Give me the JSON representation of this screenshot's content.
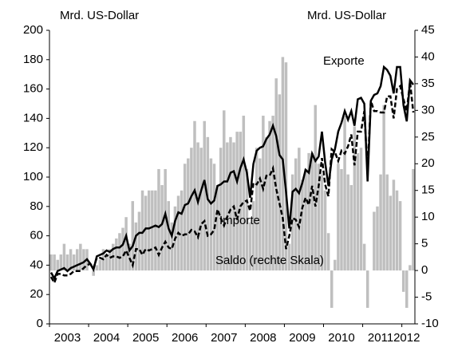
{
  "chart_data": {
    "type": "combo",
    "y_label": "Mrd. US-Dollar",
    "y2_label": "Mrd. US-Dollar",
    "categories": [
      null,
      null,
      null,
      null,
      null,
      "2003",
      null,
      null,
      null,
      null,
      null,
      null,
      null,
      null,
      null,
      null,
      null,
      "2004",
      null,
      null,
      null,
      null,
      null,
      null,
      null,
      null,
      null,
      null,
      null,
      "2005",
      null,
      null,
      null,
      null,
      null,
      null,
      null,
      null,
      null,
      null,
      null,
      "2006",
      null,
      null,
      null,
      null,
      null,
      null,
      null,
      null,
      null,
      null,
      null,
      "2007",
      null,
      null,
      null,
      null,
      null,
      null,
      null,
      null,
      null,
      null,
      null,
      "2008",
      null,
      null,
      null,
      null,
      null,
      null,
      null,
      null,
      null,
      null,
      null,
      "2009",
      null,
      null,
      null,
      null,
      null,
      null,
      null,
      null,
      null,
      null,
      null,
      "2010",
      null,
      null,
      null,
      null,
      null,
      null,
      null,
      null,
      null,
      null,
      null,
      "2011",
      null,
      null,
      null,
      null,
      null,
      null,
      null,
      "2012",
      null,
      null
    ],
    "ylim": [
      0,
      200
    ],
    "yticks": [
      0,
      20,
      40,
      60,
      80,
      100,
      120,
      140,
      160,
      180,
      200
    ],
    "y2lim": [
      -10,
      45
    ],
    "y2ticks": [
      -10,
      -5,
      0,
      5,
      10,
      15,
      20,
      25,
      30,
      35,
      40,
      45
    ],
    "series": [
      {
        "name": "Saldo (rechte Skala)",
        "kind": "bar",
        "axis": "y2",
        "color": "#bfbfbf",
        "values": [
          3,
          3,
          2,
          3,
          5,
          3,
          4,
          3,
          4,
          5,
          4,
          4,
          0,
          -1,
          1,
          2,
          4,
          3,
          4,
          5,
          6,
          7,
          8,
          10,
          5,
          13,
          9,
          11,
          15,
          14,
          15,
          15,
          15,
          19,
          16,
          19,
          13,
          9,
          12,
          14,
          15,
          20,
          21,
          23,
          28,
          24,
          23,
          28,
          25,
          21,
          20,
          16,
          23,
          30,
          24,
          25,
          24,
          26,
          26,
          29,
          19,
          9,
          13,
          23,
          21,
          29,
          25,
          28,
          29,
          36,
          33,
          40,
          39,
          5,
          18,
          21,
          23,
          17,
          19,
          22,
          22,
          31,
          20,
          18,
          15,
          7,
          -7,
          2,
          20,
          19,
          29,
          18,
          16,
          27,
          22,
          23,
          5,
          -7,
          0,
          11,
          12,
          18,
          31,
          18,
          14,
          17,
          15,
          13,
          -4,
          -7,
          1,
          19
        ]
      },
      {
        "name": "Exporte",
        "kind": "line",
        "axis": "y",
        "color": "#000000",
        "dash": false,
        "values": [
          35,
          31,
          36,
          37,
          38,
          36,
          38,
          39,
          40,
          41,
          42,
          44,
          41,
          37,
          46,
          47,
          48,
          50,
          49,
          51,
          52,
          52,
          54,
          60,
          50,
          53,
          60,
          62,
          62,
          65,
          65,
          66,
          67,
          66,
          68,
          75,
          65,
          60,
          70,
          76,
          75,
          81,
          82,
          87,
          91,
          83,
          91,
          98,
          85,
          82,
          84,
          94,
          95,
          97,
          97,
          103,
          104,
          97,
          106,
          112,
          103,
          86,
          109,
          118,
          120,
          121,
          126,
          129,
          135,
          128,
          115,
          112,
          90,
          65,
          90,
          92,
          89,
          96,
          105,
          103,
          116,
          111,
          114,
          131,
          110,
          94,
          112,
          119,
          131,
          137,
          145,
          139,
          145,
          135,
          153,
          154,
          150,
          97,
          152,
          156,
          157,
          162,
          175,
          173,
          169,
          157,
          175,
          175,
          149,
          138,
          166,
          163
        ]
      },
      {
        "name": "Importe",
        "kind": "line",
        "axis": "y",
        "color": "#000000",
        "dash": true,
        "values": [
          32,
          28,
          34,
          34,
          33,
          33,
          34,
          36,
          36,
          36,
          38,
          40,
          41,
          38,
          45,
          45,
          44,
          47,
          45,
          46,
          46,
          45,
          46,
          50,
          45,
          40,
          51,
          51,
          47,
          51,
          50,
          51,
          52,
          47,
          52,
          56,
          52,
          51,
          58,
          62,
          60,
          61,
          61,
          64,
          63,
          59,
          68,
          70,
          60,
          61,
          64,
          78,
          72,
          67,
          73,
          78,
          80,
          71,
          80,
          83,
          84,
          77,
          96,
          95,
          99,
          92,
          101,
          101,
          106,
          92,
          82,
          72,
          51,
          60,
          72,
          71,
          66,
          79,
          86,
          81,
          94,
          80,
          94,
          113,
          95,
          87,
          119,
          117,
          111,
          118,
          116,
          121,
          129,
          108,
          131,
          131,
          145,
          104,
          152,
          145,
          145,
          144,
          144,
          155,
          155,
          140,
          160,
          162,
          153,
          145,
          165,
          144
        ]
      }
    ]
  }
}
